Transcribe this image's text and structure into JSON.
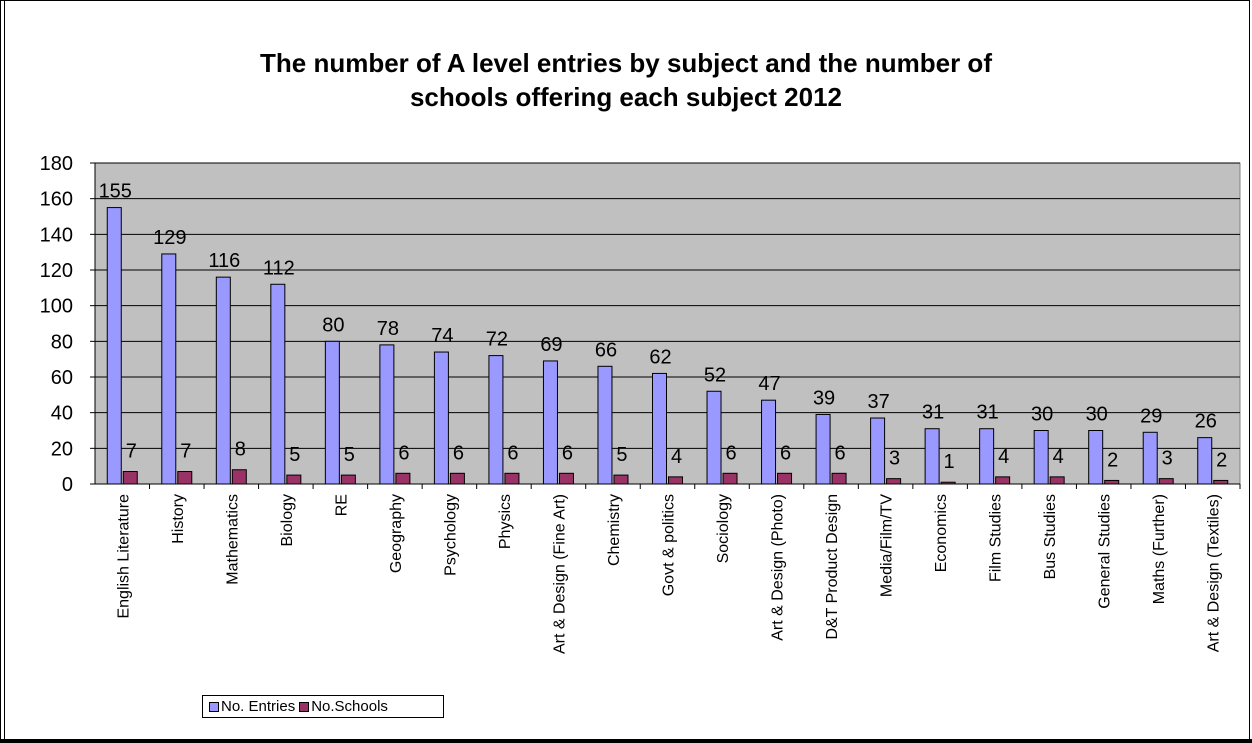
{
  "chart_data": {
    "type": "bar",
    "title_lines": [
      "The number of A level entries by subject and the number of",
      "schools offering each subject 2012"
    ],
    "categories": [
      "English Literature",
      "History",
      "Mathematics",
      "Biology",
      "RE",
      "Geography",
      "Psychology",
      "Physics",
      "Art & Design (Fine Art)",
      "Chemistry",
      "Govt & politics",
      "Sociology",
      "Art & Design (Photo)",
      "D&T Product Design",
      "Media/Film/TV",
      "Economics",
      "Film Studies",
      "Bus Studies",
      "General Studies",
      "Maths (Further)",
      "Art & Design (Textiles)"
    ],
    "series": [
      {
        "name": "No. Entries",
        "color": "#9999ff",
        "values": [
          155,
          129,
          116,
          112,
          80,
          78,
          74,
          72,
          69,
          66,
          62,
          52,
          47,
          39,
          37,
          31,
          31,
          30,
          30,
          29,
          26
        ]
      },
      {
        "name": "No.Schools",
        "color": "#993366",
        "values": [
          7,
          7,
          8,
          5,
          5,
          6,
          6,
          6,
          6,
          5,
          4,
          6,
          6,
          6,
          3,
          1,
          4,
          4,
          2,
          3,
          2
        ]
      }
    ],
    "ylim": [
      0,
      180
    ],
    "yticks": [
      0,
      20,
      40,
      60,
      80,
      100,
      120,
      140,
      160,
      180
    ],
    "grid": true,
    "plot_background": "#c0c0c0",
    "legend_position": "bottom-left"
  }
}
